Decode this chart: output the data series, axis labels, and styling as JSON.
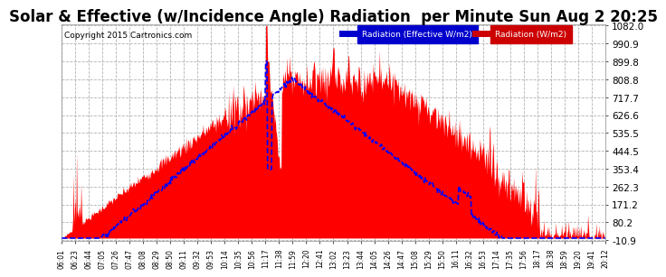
{
  "title": "Solar & Effective (w/Incidence Angle) Radiation  per Minute Sun Aug 2 20:25",
  "copyright": "Copyright 2015 Cartronics.com",
  "background_color": "#ffffff",
  "plot_bg_color": "#ffffff",
  "grid_color": "#aaaaaa",
  "y_min": -10.9,
  "y_max": 1082.0,
  "y_ticks": [
    1082.0,
    990.9,
    899.8,
    808.8,
    717.7,
    626.6,
    535.5,
    444.5,
    353.4,
    262.3,
    171.2,
    80.2,
    -10.9
  ],
  "legend_effective_label": "Radiation (Effective W/m2)",
  "legend_solar_label": "Radiation (W/m2)",
  "legend_effective_bg": "#0000cc",
  "legend_solar_bg": "#cc0000",
  "fill_color": "#ff0000",
  "line_color": "#0000ff",
  "title_color": "#000000",
  "copyright_color": "#000000",
  "title_fontsize": 12,
  "x_labels": [
    "06:01",
    "06:23",
    "06:44",
    "07:05",
    "07:26",
    "07:47",
    "08:08",
    "08:29",
    "08:50",
    "09:11",
    "09:32",
    "09:53",
    "10:14",
    "10:35",
    "10:56",
    "11:17",
    "11:38",
    "11:59",
    "12:20",
    "12:41",
    "13:02",
    "13:23",
    "13:44",
    "14:05",
    "14:26",
    "14:47",
    "15:08",
    "15:29",
    "15:50",
    "16:11",
    "16:32",
    "16:53",
    "17:14",
    "17:35",
    "17:56",
    "18:17",
    "18:38",
    "18:59",
    "19:20",
    "19:41",
    "20:12"
  ]
}
